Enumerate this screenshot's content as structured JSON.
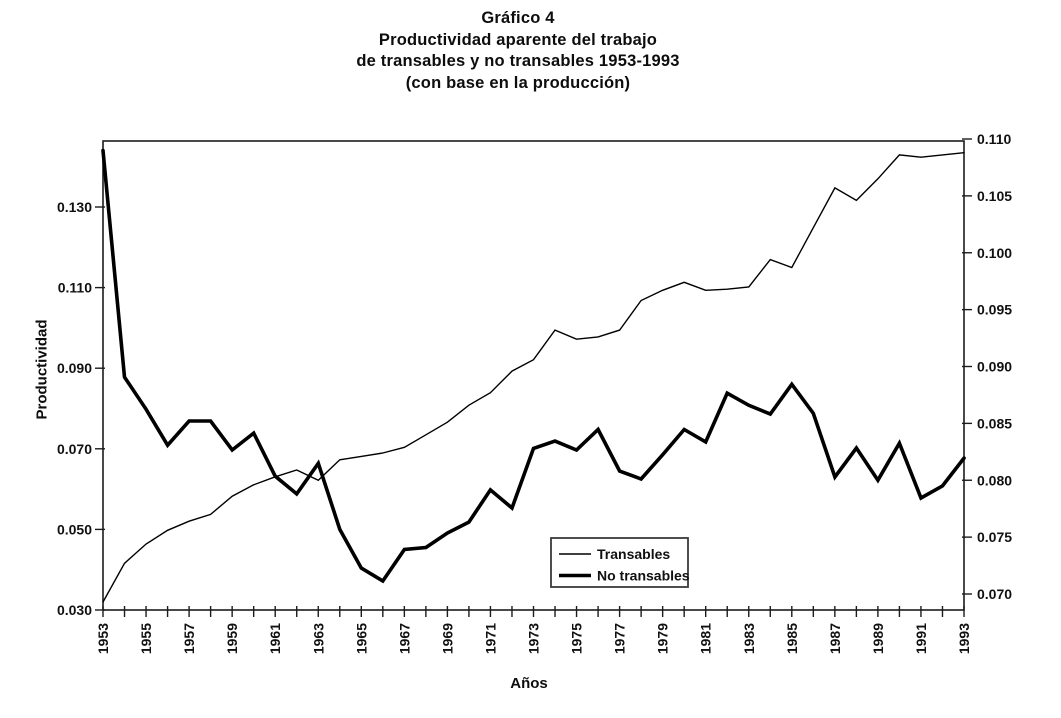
{
  "figure": {
    "title_lines": [
      "Gráfico 4",
      "Productividad aparente del trabajo",
      "de transables y no transables 1953-1993",
      "(con base en la producción)"
    ],
    "y_axis_title": "Productividad",
    "x_axis_title": "Años"
  },
  "chart_data": {
    "type": "line",
    "title": "Gráfico 4 - Productividad aparente del trabajo de transables y no transables 1953-1993 (con base en la producción)",
    "xlabel": "Años",
    "ylabel_left": "Productividad",
    "grid": false,
    "background": "#ffffff",
    "line_color": "#000000",
    "x": [
      1953,
      1954,
      1955,
      1956,
      1957,
      1958,
      1959,
      1960,
      1961,
      1962,
      1963,
      1964,
      1965,
      1966,
      1967,
      1968,
      1969,
      1970,
      1971,
      1972,
      1973,
      1974,
      1975,
      1976,
      1977,
      1978,
      1979,
      1980,
      1981,
      1982,
      1983,
      1984,
      1985,
      1986,
      1987,
      1988,
      1989,
      1990,
      1991,
      1992,
      1993
    ],
    "x_tick_labels_shown": [
      "1953",
      "1955",
      "1957",
      "1959",
      "1961",
      "1963",
      "1965",
      "1967",
      "1969",
      "1971",
      "1973",
      "1975",
      "1977",
      "1979",
      "1981",
      "1983",
      "1985",
      "1987",
      "1989",
      "1991",
      "1993"
    ],
    "left_axis": {
      "title": "Productividad",
      "tick_values": [
        0.03,
        0.05,
        0.07,
        0.09,
        0.11,
        0.13
      ],
      "tick_labels": [
        "0.030",
        "0.050",
        "0.070",
        "0.090",
        "0.110",
        "0.130"
      ],
      "range": [
        0.03,
        0.1465
      ]
    },
    "right_axis": {
      "tick_values": [
        0.07,
        0.075,
        0.08,
        0.085,
        0.09,
        0.095,
        0.1,
        0.105,
        0.11
      ],
      "tick_labels": [
        "0.070",
        "0.075",
        "0.080",
        "0.085",
        "0.090",
        "0.095",
        "0.100",
        "0.105",
        "0.110"
      ],
      "range": [
        0.0686,
        0.11
      ]
    },
    "series": [
      {
        "name": "Transables",
        "axis": "right",
        "line_style": "thin",
        "color": "#000000",
        "values": [
          0.0693,
          0.0727,
          0.0744,
          0.0756,
          0.0764,
          0.077,
          0.0786,
          0.0796,
          0.0803,
          0.0809,
          0.08,
          0.0818,
          0.0821,
          0.0824,
          0.0829,
          0.084,
          0.0851,
          0.0866,
          0.0877,
          0.0896,
          0.0906,
          0.0932,
          0.0924,
          0.0926,
          0.0932,
          0.0958,
          0.0967,
          0.0974,
          0.0967,
          0.0968,
          0.097,
          0.0994,
          0.0987,
          0.1022,
          0.1057,
          0.1046,
          0.1065,
          0.1086,
          0.1084,
          0.1086,
          0.1088
        ]
      },
      {
        "name": "No transables",
        "axis": "left",
        "line_style": "thick",
        "color": "#000000",
        "values": [
          0.144,
          0.0878,
          0.0798,
          0.0709,
          0.0769,
          0.0769,
          0.0697,
          0.0739,
          0.0632,
          0.0588,
          0.0664,
          0.05,
          0.0404,
          0.0372,
          0.045,
          0.0455,
          0.0491,
          0.0518,
          0.0598,
          0.0553,
          0.0701,
          0.0719,
          0.0697,
          0.0748,
          0.0645,
          0.0625,
          0.0685,
          0.0748,
          0.0717,
          0.0838,
          0.0808,
          0.0786,
          0.086,
          0.0788,
          0.063,
          0.0702,
          0.0622,
          0.0714,
          0.0578,
          0.0608,
          0.0677
        ]
      }
    ],
    "legend": {
      "position": "inside-bottom-center",
      "entries": [
        "Transables",
        "No transables"
      ]
    }
  }
}
